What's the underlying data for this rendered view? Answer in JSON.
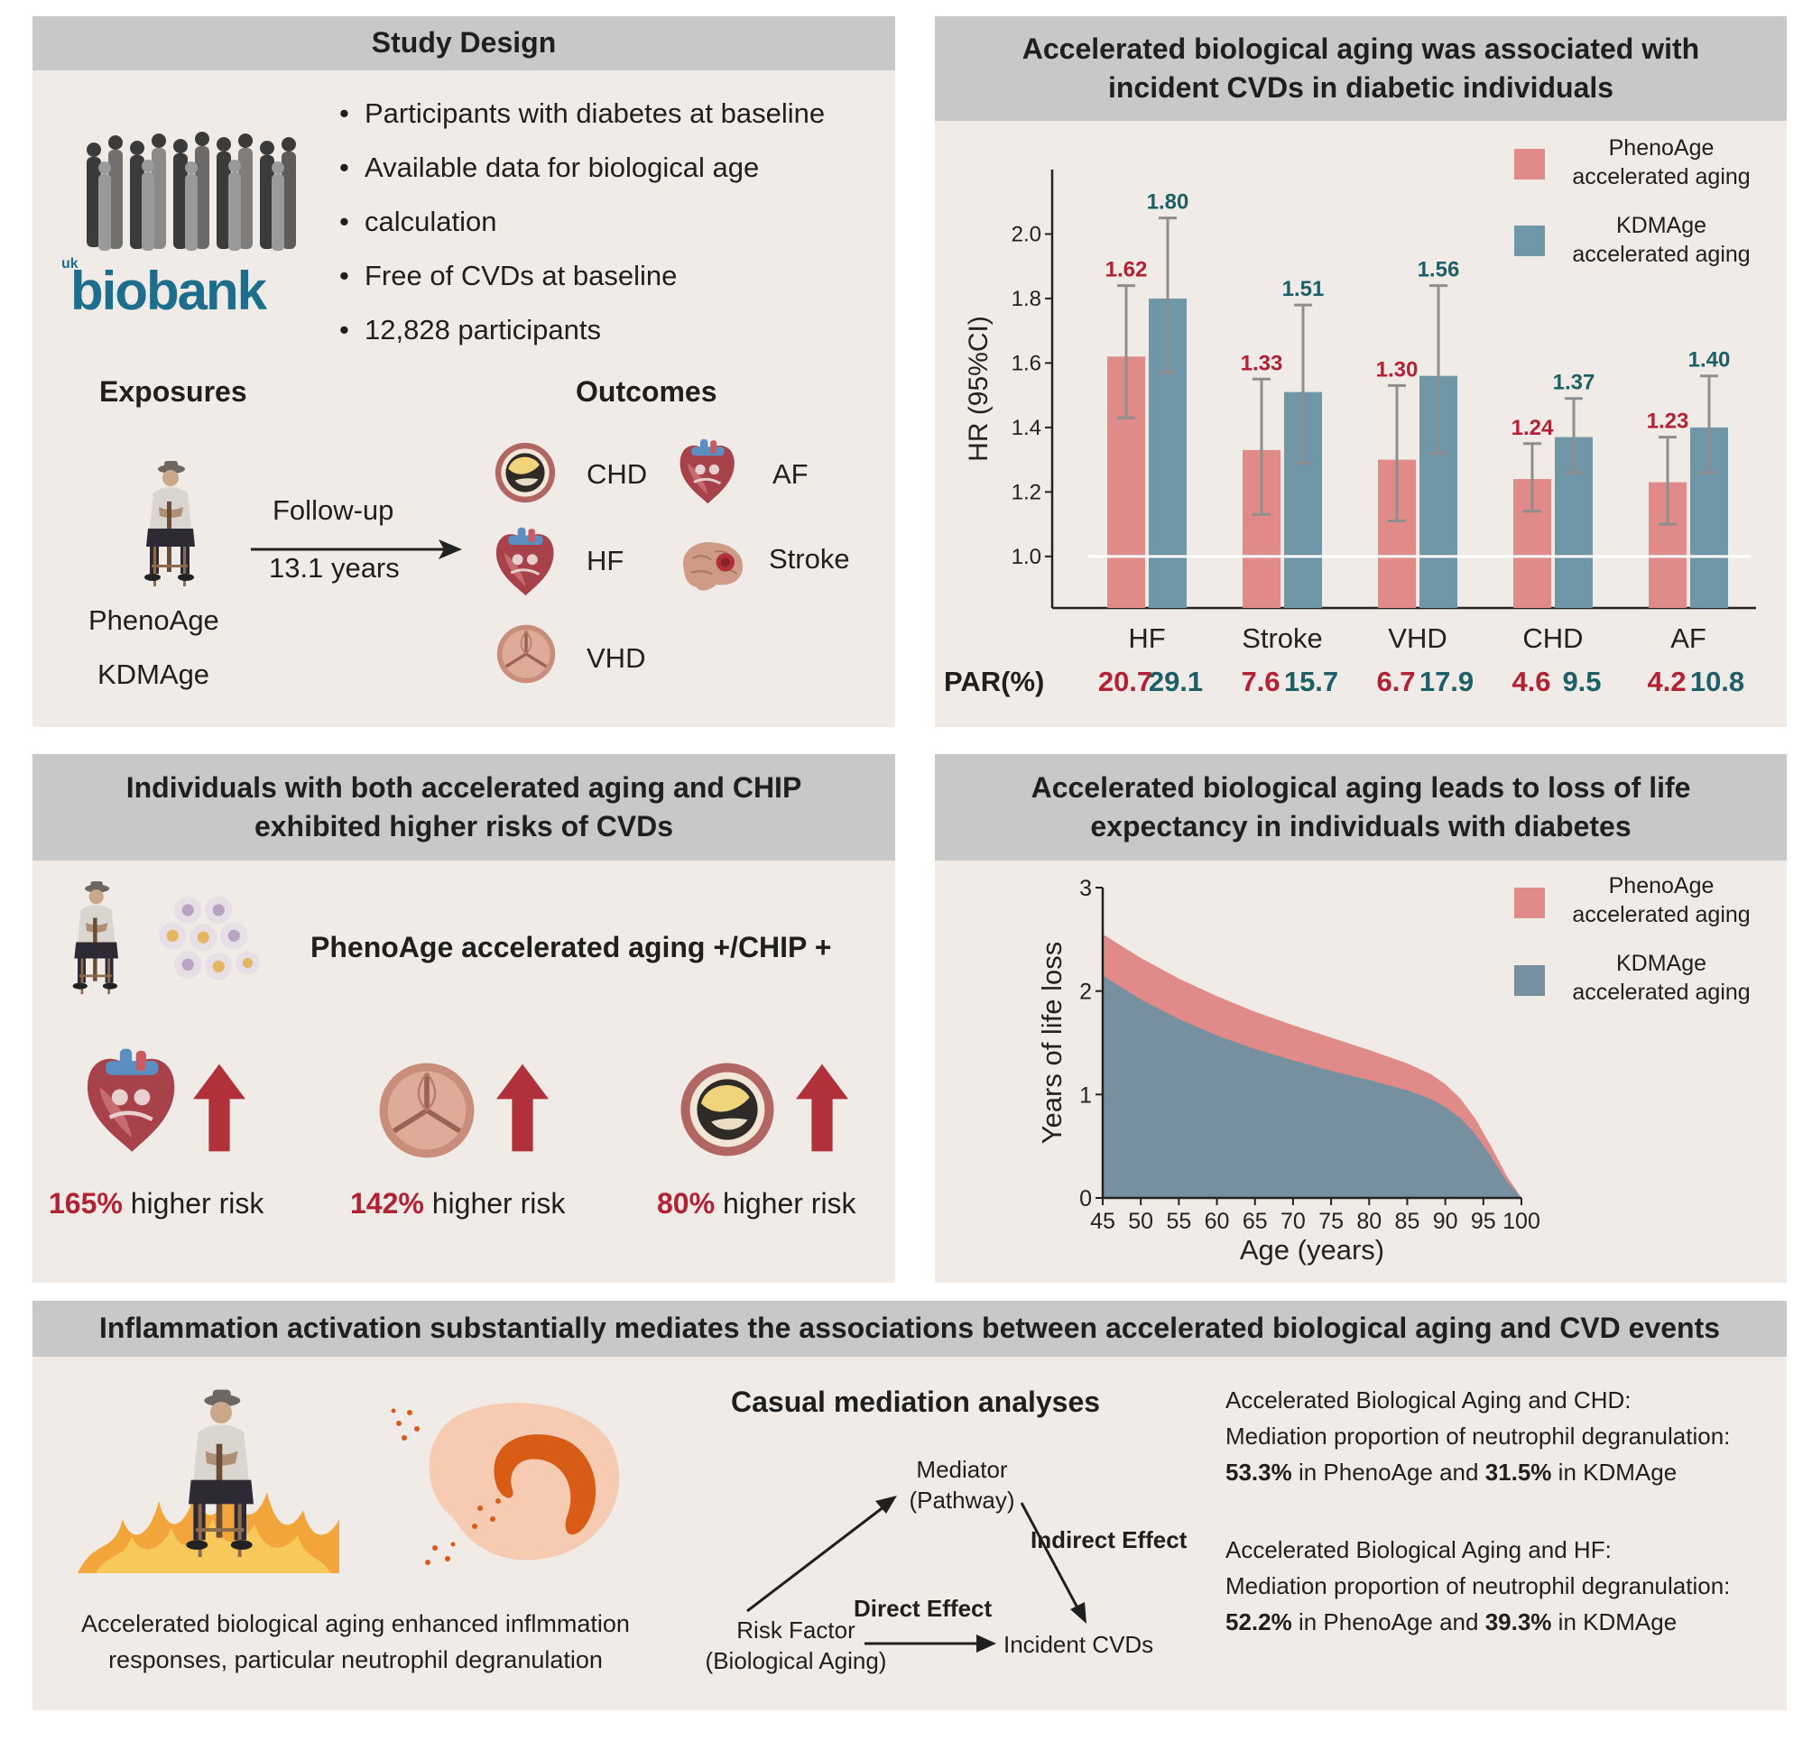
{
  "study_design": {
    "title": "Study Design",
    "bullets": [
      "Participants with diabetes at baseline",
      "Available data for biological age",
      "calculation",
      "Free of CVDs at baseline",
      "12,828 participants"
    ],
    "logo_small": "uk",
    "logo_main": "biobank",
    "exposures_title": "Exposures",
    "outcomes_title": "Outcomes",
    "followup_label": "Follow-up",
    "followup_years": "13.1 years",
    "exposure_1": "PhenoAge",
    "exposure_2": "KDMAge",
    "outcomes": {
      "chd": "CHD",
      "af": "AF",
      "hf": "HF",
      "stroke": "Stroke",
      "vhd": "VHD"
    }
  },
  "hr_panel": {
    "title_line1": "Accelerated biological aging was associated with",
    "title_line2": "incident CVDs in diabetic individuals",
    "legend_pheno_1": "PhenoAge",
    "legend_pheno_2": "accelerated aging",
    "legend_kdm_1": "KDMAge",
    "legend_kdm_2": "accelerated aging",
    "par_label": "PAR(%)"
  },
  "chart_data": [
    {
      "type": "bar",
      "ylabel": "HR (95%CI)",
      "ylim": [
        0.84,
        2.2
      ],
      "yticks": [
        "1.0",
        "1.2",
        "1.4",
        "1.6",
        "1.8",
        "2.0"
      ],
      "ytick_values": [
        1.0,
        1.2,
        1.4,
        1.6,
        1.8,
        2.0
      ],
      "reference_line": 1.0,
      "categories": [
        "HF",
        "Stroke",
        "VHD",
        "CHD",
        "AF"
      ],
      "series": [
        {
          "name": "PhenoAge accelerated aging",
          "color": "#e08a8a",
          "values": [
            1.62,
            1.33,
            1.3,
            1.24,
            1.23
          ],
          "labels": [
            "1.62",
            "1.33",
            "1.30",
            "1.24",
            "1.23"
          ],
          "ci_low": [
            1.43,
            1.13,
            1.11,
            1.14,
            1.1
          ],
          "ci_high": [
            1.84,
            1.55,
            1.53,
            1.35,
            1.37
          ],
          "par": [
            "20.7",
            "7.6",
            "6.7",
            "4.6",
            "4.2"
          ]
        },
        {
          "name": "KDMAge accelerated aging",
          "color": "#6f97a8",
          "values": [
            1.8,
            1.51,
            1.56,
            1.37,
            1.4
          ],
          "labels": [
            "1.80",
            "1.51",
            "1.56",
            "1.37",
            "1.40"
          ],
          "ci_low": [
            1.57,
            1.29,
            1.32,
            1.26,
            1.26
          ],
          "ci_high": [
            2.05,
            1.78,
            1.84,
            1.49,
            1.56
          ],
          "par": [
            "29.1",
            "15.7",
            "17.9",
            "9.5",
            "10.8"
          ]
        }
      ]
    },
    {
      "type": "area",
      "xlabel": "Age (years)",
      "ylabel": "Years of life loss",
      "xlim": [
        45,
        100
      ],
      "ylim": [
        0,
        3
      ],
      "xticks": [
        "45",
        "50",
        "55",
        "60",
        "65",
        "70",
        "75",
        "80",
        "85",
        "90",
        "95",
        "100"
      ],
      "xtick_values": [
        45,
        50,
        55,
        60,
        65,
        70,
        75,
        80,
        85,
        90,
        95,
        100
      ],
      "yticks": [
        "0",
        "1",
        "2",
        "3"
      ],
      "ytick_values": [
        0,
        1,
        2,
        3
      ],
      "x": [
        45,
        50,
        55,
        60,
        65,
        70,
        75,
        80,
        85,
        88,
        90,
        92,
        94,
        96,
        98,
        100
      ],
      "series": [
        {
          "name": "PhenoAge accelerated aging",
          "color": "#e08a8a",
          "values": [
            2.55,
            2.32,
            2.12,
            1.95,
            1.8,
            1.67,
            1.55,
            1.43,
            1.3,
            1.2,
            1.1,
            0.96,
            0.76,
            0.5,
            0.22,
            0.0
          ]
        },
        {
          "name": "KDMAge accelerated aging",
          "color": "#76909f",
          "values": [
            2.15,
            1.92,
            1.73,
            1.57,
            1.44,
            1.33,
            1.23,
            1.14,
            1.04,
            0.96,
            0.88,
            0.77,
            0.61,
            0.4,
            0.17,
            0.0
          ]
        }
      ]
    }
  ],
  "chip_panel": {
    "title_line1": "Individuals with both accelerated aging and CHIP",
    "title_line2": "exhibited higher risks of CVDs",
    "subtitle": "PhenoAge accelerated aging +/CHIP +",
    "risks": [
      {
        "pct": "165%",
        "text": "higher risk"
      },
      {
        "pct": "142%",
        "text": "higher risk"
      },
      {
        "pct": "80%",
        "text": "higher risk"
      }
    ]
  },
  "life_panel": {
    "title_line1": "Accelerated biological aging leads to loss of life",
    "title_line2": "expectancy in individuals with diabetes",
    "legend_pheno_1": "PhenoAge",
    "legend_pheno_2": "accelerated aging",
    "legend_kdm_1": "KDMAge",
    "legend_kdm_2": "accelerated aging"
  },
  "mediation_panel": {
    "title": "Inflammation activation substantially mediates the associations between accelerated biological aging and CVD events",
    "left_caption_1": "Accelerated biological aging enhanced inflmmation",
    "left_caption_2": "responses, particular neutrophil degranulation",
    "analysis_title": "Casual mediation analyses",
    "mediator_1": "Mediator",
    "mediator_2": "(Pathway)",
    "indirect": "Indirect Effect",
    "direct": "Direct Effect",
    "risk_1": "Risk Factor",
    "risk_2": "(Biological Aging)",
    "outcome": "Incident CVDs",
    "chd_heading": "Accelerated Biological Aging and CHD:",
    "chd_line": "Mediation proportion of neutrophil degranulation:",
    "chd_pheno": "53.3%",
    "chd_mid": " in PhenoAge and ",
    "chd_kdm": "31.5%",
    "chd_end": " in KDMAge",
    "hf_heading": "Accelerated Biological Aging and HF:",
    "hf_line": "Mediation proportion of neutrophil degranulation:",
    "hf_pheno": "52.2%",
    "hf_mid": " in PhenoAge and ",
    "hf_kdm": "39.3%",
    "hf_end": " in KDMAge"
  },
  "colors": {
    "panel_bg": "#f0ebe6",
    "header_bg": "#c8c8c8",
    "accent_red": "#b22234",
    "accent_teal": "#1d5f66",
    "arrow_red": "#b0313a"
  }
}
